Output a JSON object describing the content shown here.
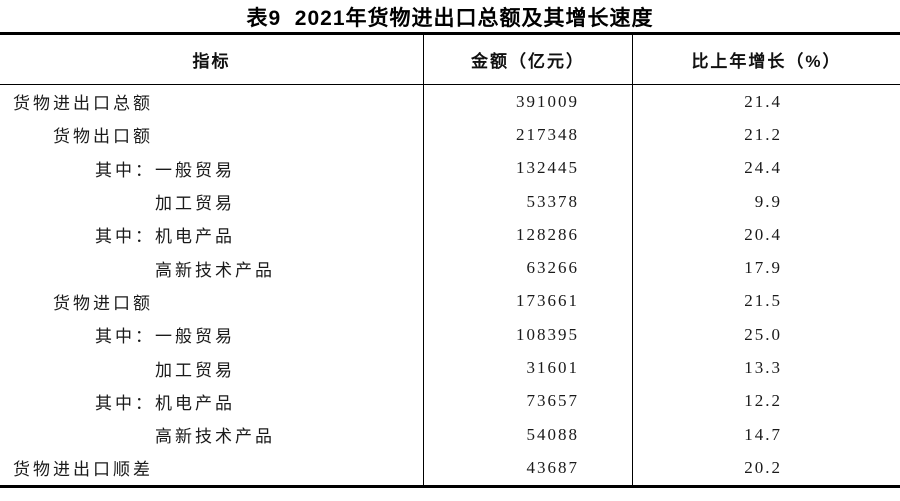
{
  "title": "表9  2021年货物进出口总额及其增长速度",
  "table": {
    "columns": [
      "指标",
      "金额（亿元）",
      "比上年增长（%）"
    ],
    "rows": [
      {
        "label": "货物进出口总额",
        "indent": 0,
        "amount": "391009",
        "growth": "21.4"
      },
      {
        "label": "货物出口额",
        "indent": 1,
        "amount": "217348",
        "growth": "21.2"
      },
      {
        "label": "其中：一般贸易",
        "indent": 2,
        "amount": "132445",
        "growth": "24.4"
      },
      {
        "label": "加工贸易",
        "indent": 3,
        "amount": "53378",
        "growth": "9.9"
      },
      {
        "label": "其中：机电产品",
        "indent": 2,
        "amount": "128286",
        "growth": "20.4"
      },
      {
        "label": "高新技术产品",
        "indent": 3,
        "amount": "63266",
        "growth": "17.9"
      },
      {
        "label": "货物进口额",
        "indent": 1,
        "amount": "173661",
        "growth": "21.5"
      },
      {
        "label": "其中：一般贸易",
        "indent": 2,
        "amount": "108395",
        "growth": "25.0"
      },
      {
        "label": "加工贸易",
        "indent": 3,
        "amount": "31601",
        "growth": "13.3"
      },
      {
        "label": "其中：机电产品",
        "indent": 2,
        "amount": "73657",
        "growth": "12.2"
      },
      {
        "label": "高新技术产品",
        "indent": 3,
        "amount": "54088",
        "growth": "14.7"
      },
      {
        "label": "货物进出口顺差",
        "indent": 0,
        "amount": "43687",
        "growth": "20.2"
      }
    ]
  }
}
